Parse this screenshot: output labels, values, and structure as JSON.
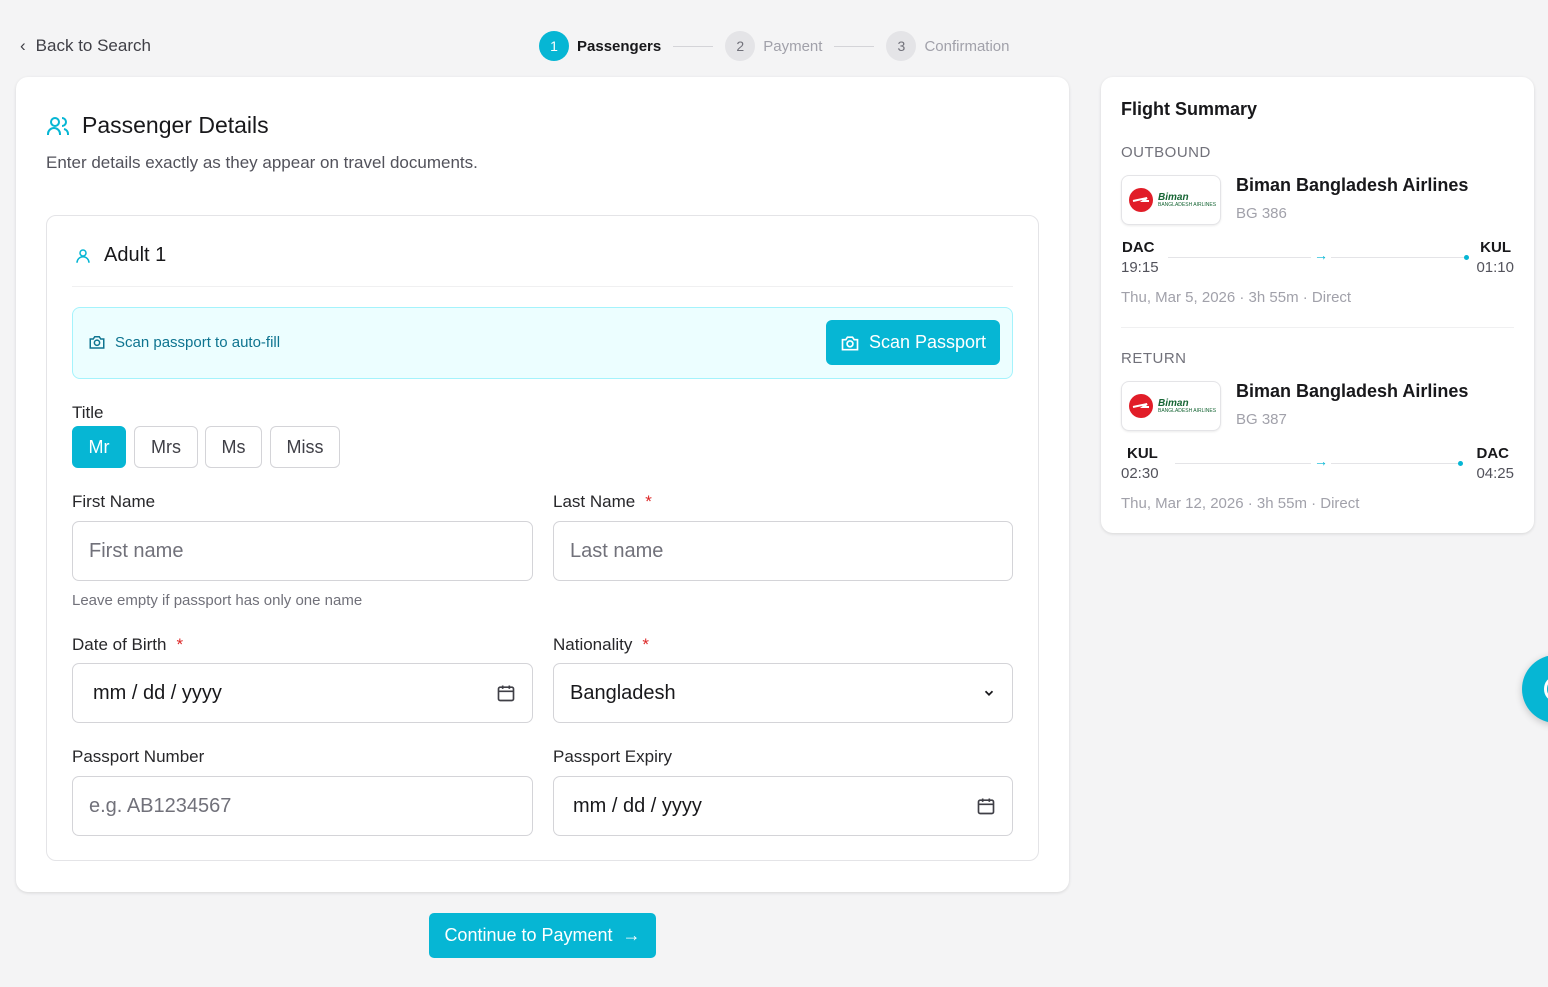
{
  "nav": {
    "back_label": "Back to Search"
  },
  "steps": [
    {
      "num": "1",
      "label": "Passengers",
      "active": true
    },
    {
      "num": "2",
      "label": "Payment"
    },
    {
      "num": "3",
      "label": "Confirmation"
    }
  ],
  "form": {
    "title": "Passenger Details",
    "subtitle": "Enter details exactly as they appear on travel documents.",
    "passenger_label": "Adult 1",
    "scan_hint": "Scan passport to auto-fill",
    "scan_button": "Scan Passport",
    "title_label": "Title",
    "titles": [
      "Mr",
      "Mrs",
      "Ms",
      "Miss"
    ],
    "selected_title": "Mr",
    "first_name": {
      "label": "First Name",
      "placeholder": "First name",
      "value": "",
      "hint": "Leave empty if passport has only one name"
    },
    "last_name": {
      "label": "Last Name",
      "placeholder": "Last name",
      "value": "",
      "required": "*"
    },
    "dob": {
      "label": "Date of Birth",
      "placeholder": "mm / dd / yyyy",
      "required": "*"
    },
    "nationality": {
      "label": "Nationality",
      "value": "Bangladesh",
      "required": "*"
    },
    "passport_number": {
      "label": "Passport Number",
      "placeholder": "e.g. AB1234567"
    },
    "passport_expiry": {
      "label": "Passport Expiry",
      "placeholder": "mm / dd / yyyy"
    },
    "continue_button": "Continue to Payment"
  },
  "summary": {
    "title": "Flight Summary",
    "outbound": {
      "section": "OUTBOUND",
      "airline": "Biman Bangladesh Airlines",
      "flight": "BG 386",
      "from": "DAC",
      "dep": "19:15",
      "to": "KUL",
      "arr": "01:10",
      "meta": "Thu, Mar 5, 2026 · 3h 55m · Direct",
      "logo_text": "Biman BANGLADESH AIRLINES"
    },
    "return": {
      "section": "RETURN",
      "airline": "Biman Bangladesh Airlines",
      "flight": "BG 387",
      "from": "KUL",
      "dep": "02:30",
      "to": "DAC",
      "arr": "04:25",
      "meta": "Thu, Mar 12, 2026 · 3h 55m · Direct",
      "logo_text": "Biman BANGLADESH AIRLINES"
    }
  },
  "colors": {
    "accent": "#06b6d4",
    "required": "#dc2626",
    "scan_bg": "#ecfeff"
  }
}
